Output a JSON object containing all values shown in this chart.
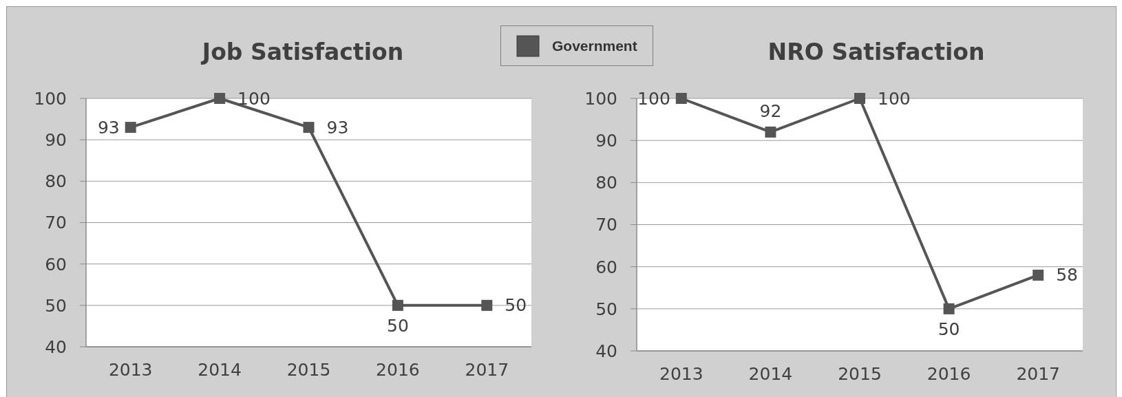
{
  "chart_data": [
    {
      "type": "line",
      "title": "Job Satisfaction",
      "categories": [
        "2013",
        "2014",
        "2015",
        "2016",
        "2017"
      ],
      "series": [
        {
          "name": "Government",
          "color": "#555555",
          "values": [
            93,
            100,
            93,
            50,
            50
          ]
        }
      ],
      "ylim": [
        40,
        100
      ],
      "yticks": [
        40,
        50,
        60,
        70,
        80,
        90,
        100
      ],
      "grid": "y",
      "legend": "top right",
      "marker": "square",
      "data_labels": true
    },
    {
      "type": "line",
      "title": "NRO Satisfaction",
      "categories": [
        "2013",
        "2014",
        "2015",
        "2016",
        "2017"
      ],
      "series": [
        {
          "color": "#555555",
          "values": [
            100,
            92,
            100,
            50,
            58
          ]
        }
      ],
      "ylim": [
        40,
        100
      ],
      "yticks": [
        40,
        50,
        60,
        70,
        80,
        90,
        100
      ],
      "grid": "y",
      "marker": "square",
      "data_labels": true
    }
  ]
}
